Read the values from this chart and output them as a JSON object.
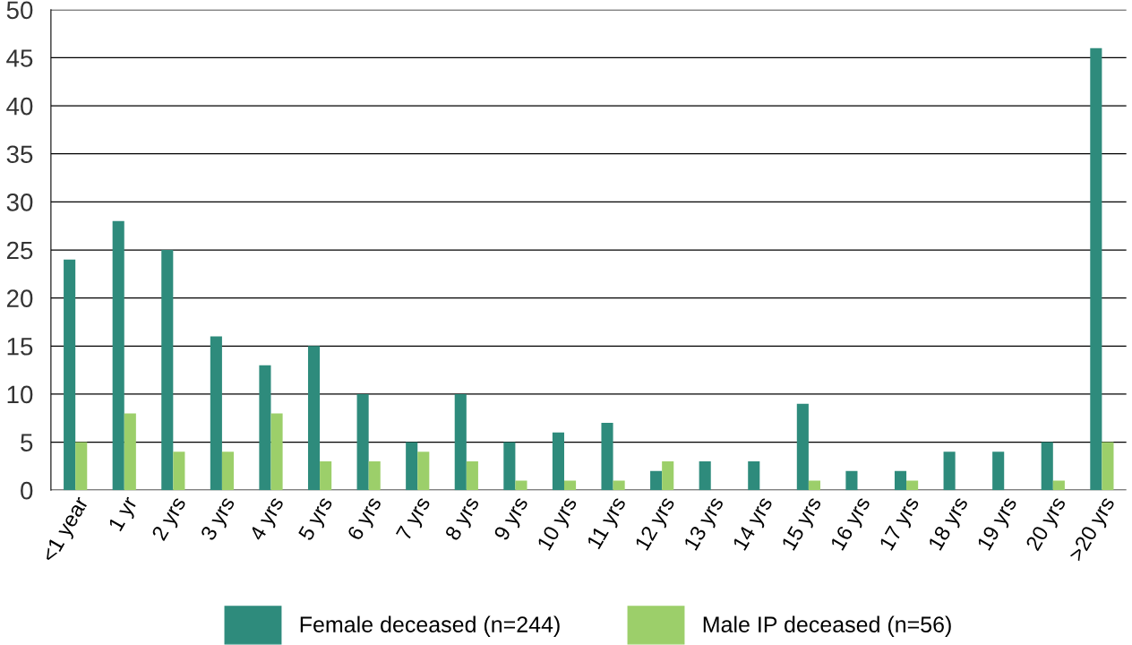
{
  "chart_data": {
    "type": "bar",
    "categories": [
      "<1 year",
      "1 yr",
      "2 yrs",
      "3 yrs",
      "4 yrs",
      "5 yrs",
      "6 yrs",
      "7 yrs",
      "8 yrs",
      "9 yrs",
      "10 yrs",
      "11 yrs",
      "12 yrs",
      "13 yrs",
      "14 yrs",
      "15 yrs",
      "16 yrs",
      "17 yrs",
      "18 yrs",
      "19 yrs",
      "20 yrs",
      ">20 yrs"
    ],
    "series": [
      {
        "name": "Female deceased (n=244)",
        "color": "#2e8b7c",
        "values": [
          24,
          28,
          25,
          16,
          13,
          15,
          10,
          5,
          10,
          5,
          6,
          7,
          2,
          3,
          3,
          9,
          2,
          2,
          4,
          4,
          5,
          46
        ]
      },
      {
        "name": "Male IP deceased (n=56)",
        "color": "#9ccf6a",
        "values": [
          5,
          8,
          4,
          4,
          8,
          3,
          3,
          4,
          3,
          1,
          1,
          1,
          3,
          0,
          0,
          1,
          0,
          1,
          0,
          0,
          1,
          5
        ]
      }
    ],
    "ylim": [
      0,
      50
    ],
    "yticks": [
      0,
      5,
      10,
      15,
      20,
      25,
      30,
      35,
      40,
      45,
      50
    ],
    "grid": "y",
    "legend": "bottom"
  }
}
